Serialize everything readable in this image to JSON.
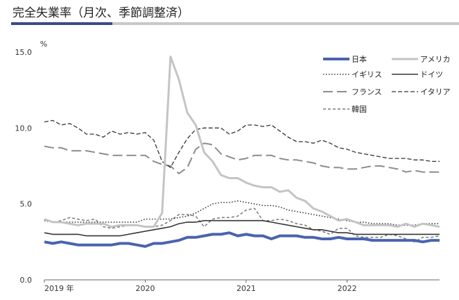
{
  "title": "完全失業率（月次、季節調整済）",
  "chart_data": {
    "type": "line",
    "unit": "%",
    "ylim": [
      0,
      15
    ],
    "yticks": [
      "0.0",
      "5.0",
      "10.0",
      "15.0"
    ],
    "xticks": [
      {
        "label": "2019 年",
        "value": "2019-01"
      },
      {
        "label": "2020",
        "value": "2020-01"
      },
      {
        "label": "2021",
        "value": "2021-01"
      },
      {
        "label": "2022",
        "value": "2022-01"
      }
    ],
    "grid": false,
    "legend_position": "top-right",
    "x": [
      "2019-01",
      "2019-02",
      "2019-03",
      "2019-04",
      "2019-05",
      "2019-06",
      "2019-07",
      "2019-08",
      "2019-09",
      "2019-10",
      "2019-11",
      "2019-12",
      "2020-01",
      "2020-02",
      "2020-03",
      "2020-04",
      "2020-05",
      "2020-06",
      "2020-07",
      "2020-08",
      "2020-09",
      "2020-10",
      "2020-11",
      "2020-12",
      "2021-01",
      "2021-02",
      "2021-03",
      "2021-04",
      "2021-05",
      "2021-06",
      "2021-07",
      "2021-08",
      "2021-09",
      "2021-10",
      "2021-11",
      "2021-12",
      "2022-01",
      "2022-02",
      "2022-03",
      "2022-04",
      "2022-05",
      "2022-06",
      "2022-07",
      "2022-08",
      "2022-09",
      "2022-10",
      "2022-11",
      "2022-12"
    ],
    "series": [
      {
        "name": "日本",
        "color": "#4a63b0",
        "width": 4,
        "dash": "",
        "values": [
          2.5,
          2.4,
          2.5,
          2.4,
          2.3,
          2.3,
          2.3,
          2.3,
          2.3,
          2.4,
          2.4,
          2.3,
          2.2,
          2.4,
          2.4,
          2.5,
          2.6,
          2.8,
          2.8,
          2.9,
          3.0,
          3.0,
          3.1,
          2.9,
          3.0,
          2.9,
          2.9,
          2.7,
          2.9,
          2.9,
          2.9,
          2.8,
          2.8,
          2.7,
          2.7,
          2.8,
          2.7,
          2.7,
          2.7,
          2.6,
          2.6,
          2.6,
          2.6,
          2.6,
          2.6,
          2.5,
          2.6,
          2.6
        ]
      },
      {
        "name": "アメリカ",
        "color": "#c4c4c4",
        "width": 3,
        "dash": "",
        "values": [
          4.0,
          3.8,
          3.8,
          3.7,
          3.6,
          3.7,
          3.7,
          3.7,
          3.5,
          3.6,
          3.6,
          3.6,
          3.5,
          3.5,
          4.4,
          14.7,
          13.2,
          11.0,
          10.2,
          8.4,
          7.8,
          6.9,
          6.7,
          6.7,
          6.4,
          6.2,
          6.1,
          6.1,
          5.8,
          5.9,
          5.4,
          5.2,
          4.7,
          4.5,
          4.2,
          3.9,
          4.0,
          3.8,
          3.6,
          3.6,
          3.6,
          3.6,
          3.5,
          3.7,
          3.5,
          3.7,
          3.6,
          3.5
        ]
      },
      {
        "name": "イギリス",
        "color": "#333333",
        "width": 1.6,
        "dash": "1.5,2.5",
        "values": [
          3.9,
          3.8,
          3.8,
          3.8,
          3.8,
          3.8,
          3.8,
          3.8,
          3.8,
          3.8,
          3.8,
          3.8,
          4.0,
          4.0,
          4.0,
          4.0,
          4.1,
          4.2,
          4.4,
          4.7,
          5.0,
          5.1,
          5.1,
          5.2,
          5.1,
          5.0,
          4.9,
          4.9,
          4.8,
          4.6,
          4.5,
          4.4,
          4.3,
          4.2,
          4.1,
          4.0,
          3.9,
          3.8,
          3.8,
          3.7,
          3.7,
          3.7,
          3.6,
          3.6,
          3.6,
          3.7,
          3.7,
          3.7
        ]
      },
      {
        "name": "ドイツ",
        "color": "#333333",
        "width": 1.6,
        "dash": "",
        "values": [
          3.1,
          3.0,
          3.0,
          3.0,
          3.0,
          2.9,
          2.9,
          2.9,
          2.9,
          2.9,
          3.0,
          3.1,
          3.2,
          3.3,
          3.4,
          3.5,
          3.7,
          3.8,
          3.8,
          3.9,
          3.9,
          3.9,
          3.9,
          3.9,
          3.9,
          3.9,
          3.9,
          3.8,
          3.7,
          3.6,
          3.5,
          3.4,
          3.3,
          3.3,
          3.2,
          3.1,
          3.1,
          3.0,
          3.0,
          3.0,
          3.0,
          3.0,
          3.0,
          3.0,
          3.0,
          3.0,
          3.0,
          3.0
        ]
      },
      {
        "name": "フランス",
        "color": "#8c8c8c",
        "width": 2,
        "dash": "14,6",
        "values": [
          8.8,
          8.7,
          8.7,
          8.5,
          8.5,
          8.5,
          8.4,
          8.3,
          8.2,
          8.2,
          8.2,
          8.2,
          8.2,
          7.8,
          7.6,
          7.5,
          7.0,
          7.4,
          8.6,
          9.0,
          8.9,
          8.3,
          8.1,
          7.9,
          8.0,
          8.2,
          8.2,
          8.2,
          8.0,
          7.9,
          7.9,
          7.8,
          7.7,
          7.5,
          7.4,
          7.4,
          7.3,
          7.3,
          7.4,
          7.5,
          7.5,
          7.4,
          7.3,
          7.1,
          7.2,
          7.1,
          7.1,
          7.1
        ]
      },
      {
        "name": "イタリア",
        "color": "#333333",
        "width": 1.3,
        "dash": "6,3",
        "values": [
          10.4,
          10.5,
          10.2,
          10.3,
          10.0,
          9.6,
          9.6,
          9.4,
          9.8,
          9.6,
          9.7,
          9.6,
          9.7,
          9.2,
          7.8,
          7.4,
          8.4,
          9.3,
          9.9,
          10.0,
          10.0,
          10.0,
          9.6,
          9.8,
          10.2,
          10.2,
          10.1,
          10.2,
          9.8,
          9.4,
          9.1,
          9.1,
          9.0,
          9.2,
          9.0,
          8.7,
          8.6,
          8.4,
          8.3,
          8.2,
          8.1,
          8.0,
          8.0,
          8.0,
          7.9,
          7.9,
          7.8,
          7.8
        ]
      },
      {
        "name": "韓国",
        "color": "#777777",
        "width": 1.5,
        "dash": "4,3",
        "values": [
          4.0,
          3.8,
          3.9,
          4.1,
          4.0,
          3.9,
          4.0,
          3.5,
          3.4,
          3.5,
          3.6,
          3.6,
          3.5,
          3.5,
          3.6,
          3.9,
          4.3,
          4.3,
          4.2,
          3.5,
          4.0,
          4.1,
          4.1,
          4.2,
          4.6,
          4.7,
          3.9,
          3.9,
          4.0,
          3.9,
          3.7,
          3.6,
          3.3,
          3.2,
          3.0,
          3.4,
          3.4,
          2.9,
          2.8,
          2.8,
          2.8,
          3.0,
          2.9,
          2.7,
          2.5,
          2.8,
          2.8,
          2.9
        ]
      }
    ]
  }
}
